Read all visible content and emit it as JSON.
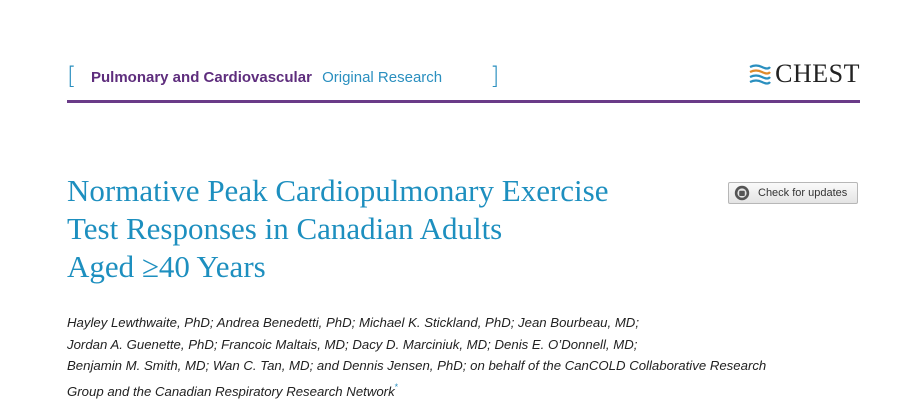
{
  "header": {
    "bracket_left": "[",
    "bracket_right": "]",
    "section_category": "Pulmonary and Cardiovascular",
    "section_type": "Original Research",
    "journal_logo_text": "CHEST",
    "logo_icon": "chest-logo-icon"
  },
  "colors": {
    "accent_blue": "#1d8fbf",
    "section_purple": "#5e2d7d",
    "rule_purple": "#6a3b88"
  },
  "article": {
    "title_lines": [
      "Normative Peak Cardiopulmonary Exercise",
      "Test Responses in Canadian Adults",
      "Aged ≥40 Years"
    ],
    "check_updates_label": "Check for updates",
    "check_updates_icon": "crossmark-icon",
    "author_lines": [
      "Hayley Lewthwaite, PhD; Andrea Benedetti, PhD; Michael K. Stickland, PhD; Jean Bourbeau, MD;",
      "Jordan A. Guenette, PhD; Francoic Maltais, MD; Dacy D. Marciniuk, MD; Denis E. O’Donnell, MD;",
      "Benjamin M. Smith, MD; Wan C. Tan, MD; and Dennis Jensen, PhD; on behalf of the CanCOLD Collaborative Research",
      "Group and the Canadian Respiratory Research Network"
    ],
    "author_footnote_mark": "*"
  }
}
